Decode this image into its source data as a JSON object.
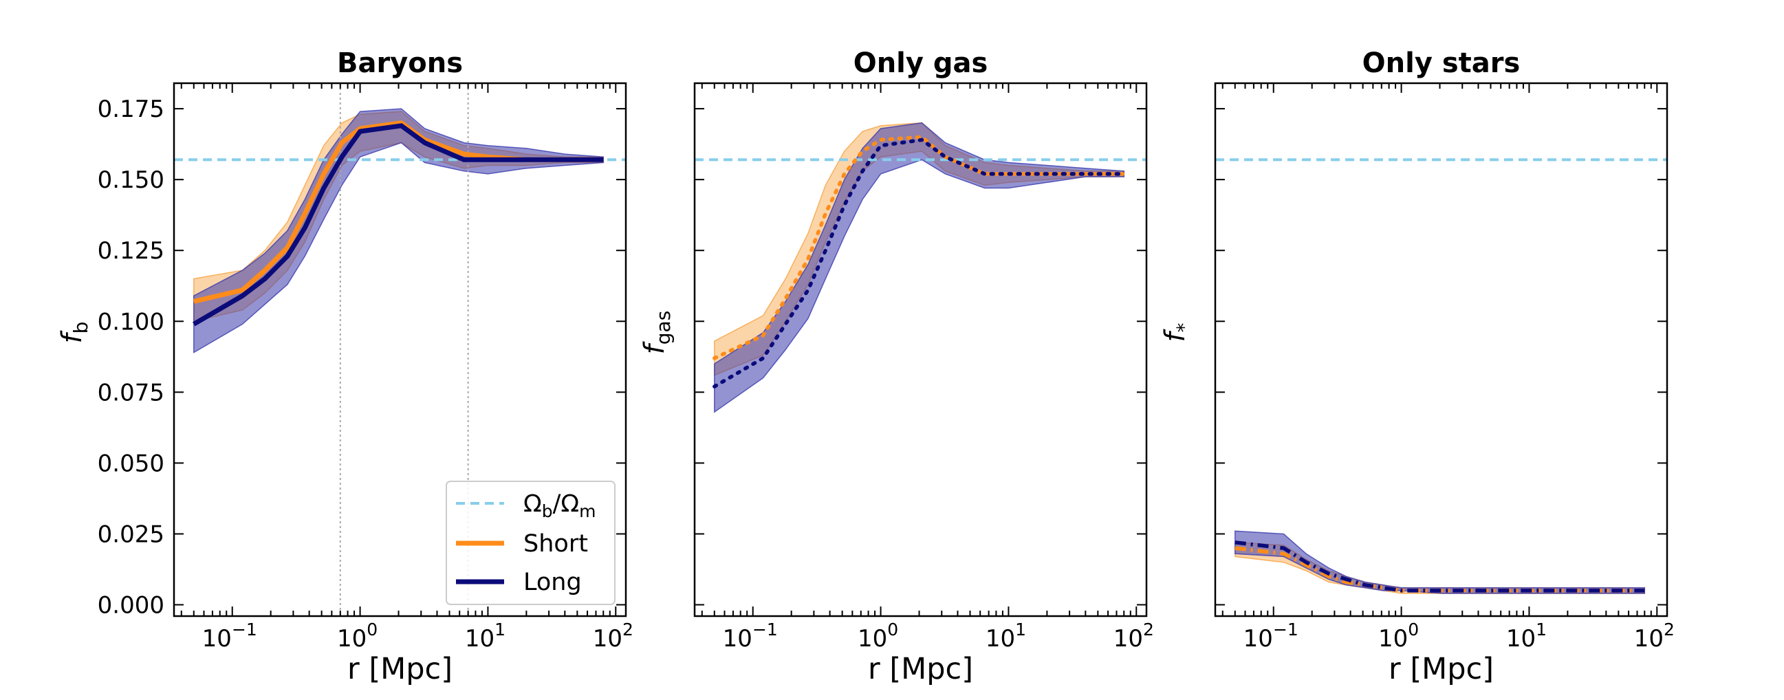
{
  "chart_data": [
    {
      "type": "line",
      "title": "Baryons",
      "xlabel": "r [Mpc]",
      "ylabel": "f",
      "ylabel_sub": "b",
      "xscale": "log",
      "xlim": [
        0.035,
        120
      ],
      "ylim": [
        -0.004,
        0.184
      ],
      "yticks": [
        {
          "v": 0.0,
          "label": "0.000"
        },
        {
          "v": 0.025,
          "label": "0.025"
        },
        {
          "v": 0.05,
          "label": "0.050"
        },
        {
          "v": 0.075,
          "label": "0.075"
        },
        {
          "v": 0.1,
          "label": "0.100"
        },
        {
          "v": 0.125,
          "label": "0.125"
        },
        {
          "v": 0.15,
          "label": "0.150"
        },
        {
          "v": 0.175,
          "label": "0.175"
        }
      ],
      "show_ytick_labels": true,
      "hline": 0.157,
      "vlines": [
        0.7,
        7
      ],
      "legend": {
        "location": "lower-right",
        "entries": [
          {
            "key": "omega",
            "label_main": "Ω",
            "label_sub1": "b",
            "label_mid": "/Ω",
            "label_sub2": "m"
          },
          {
            "key": "short",
            "label": "Short"
          },
          {
            "key": "long",
            "label": "Long"
          }
        ]
      },
      "line_style": "solid",
      "x": [
        0.05,
        0.12,
        0.18,
        0.27,
        0.37,
        0.52,
        0.72,
        1.0,
        2.1,
        3.2,
        6.5,
        10,
        20,
        40,
        80
      ],
      "series": [
        {
          "name": "Short",
          "values": [
            0.107,
            0.111,
            0.118,
            0.126,
            0.138,
            0.152,
            0.163,
            0.168,
            0.17,
            0.164,
            0.159,
            0.158,
            0.157,
            0.157,
            0.157
          ],
          "lower": [
            0.1,
            0.104,
            0.11,
            0.118,
            0.128,
            0.143,
            0.155,
            0.16,
            0.163,
            0.158,
            0.154,
            0.155,
            0.155,
            0.156,
            0.156
          ],
          "upper": [
            0.115,
            0.118,
            0.125,
            0.135,
            0.148,
            0.162,
            0.17,
            0.173,
            0.174,
            0.167,
            0.162,
            0.161,
            0.159,
            0.158,
            0.158
          ]
        },
        {
          "name": "Long",
          "values": [
            0.099,
            0.109,
            0.115,
            0.123,
            0.133,
            0.147,
            0.158,
            0.167,
            0.169,
            0.163,
            0.157,
            0.157,
            0.157,
            0.157,
            0.157
          ],
          "lower": [
            0.089,
            0.099,
            0.106,
            0.113,
            0.123,
            0.136,
            0.148,
            0.158,
            0.163,
            0.156,
            0.153,
            0.152,
            0.154,
            0.155,
            0.156
          ],
          "upper": [
            0.109,
            0.118,
            0.124,
            0.132,
            0.143,
            0.157,
            0.166,
            0.174,
            0.175,
            0.168,
            0.163,
            0.162,
            0.161,
            0.159,
            0.158
          ]
        }
      ]
    },
    {
      "type": "line",
      "title": "Only gas",
      "xlabel": "r [Mpc]",
      "ylabel": "f",
      "ylabel_sub": "gas",
      "xscale": "log",
      "xlim": [
        0.035,
        120
      ],
      "ylim": [
        -0.004,
        0.184
      ],
      "yticks": [
        {
          "v": 0.0
        },
        {
          "v": 0.025
        },
        {
          "v": 0.05
        },
        {
          "v": 0.075
        },
        {
          "v": 0.1
        },
        {
          "v": 0.125
        },
        {
          "v": 0.15
        },
        {
          "v": 0.175
        }
      ],
      "show_ytick_labels": false,
      "hline": 0.157,
      "line_style": "dotted",
      "x": [
        0.05,
        0.12,
        0.18,
        0.27,
        0.37,
        0.52,
        0.72,
        1.0,
        2.1,
        3.2,
        6.5,
        10,
        20,
        40,
        80
      ],
      "series": [
        {
          "name": "Short",
          "values": [
            0.087,
            0.095,
            0.108,
            0.122,
            0.138,
            0.152,
            0.16,
            0.164,
            0.165,
            0.158,
            0.152,
            0.152,
            0.152,
            0.152,
            0.152
          ],
          "lower": [
            0.081,
            0.088,
            0.1,
            0.113,
            0.128,
            0.142,
            0.153,
            0.158,
            0.16,
            0.153,
            0.148,
            0.149,
            0.15,
            0.151,
            0.151
          ],
          "upper": [
            0.093,
            0.102,
            0.115,
            0.131,
            0.148,
            0.16,
            0.167,
            0.169,
            0.17,
            0.162,
            0.156,
            0.155,
            0.154,
            0.153,
            0.153
          ]
        },
        {
          "name": "Long",
          "values": [
            0.077,
            0.087,
            0.099,
            0.111,
            0.125,
            0.141,
            0.153,
            0.162,
            0.164,
            0.158,
            0.152,
            0.152,
            0.152,
            0.152,
            0.152
          ],
          "lower": [
            0.068,
            0.08,
            0.09,
            0.101,
            0.115,
            0.13,
            0.143,
            0.152,
            0.157,
            0.152,
            0.147,
            0.147,
            0.149,
            0.151,
            0.151
          ],
          "upper": [
            0.085,
            0.096,
            0.107,
            0.12,
            0.134,
            0.15,
            0.161,
            0.168,
            0.17,
            0.163,
            0.157,
            0.156,
            0.155,
            0.154,
            0.153
          ]
        }
      ]
    },
    {
      "type": "line",
      "title": "Only stars",
      "xlabel": "r [Mpc]",
      "ylabel": "f",
      "ylabel_sub": "*",
      "xscale": "log",
      "xlim": [
        0.035,
        120
      ],
      "ylim": [
        -0.004,
        0.184
      ],
      "yticks": [
        {
          "v": 0.0
        },
        {
          "v": 0.025
        },
        {
          "v": 0.05
        },
        {
          "v": 0.075
        },
        {
          "v": 0.1
        },
        {
          "v": 0.125
        },
        {
          "v": 0.15
        },
        {
          "v": 0.175
        }
      ],
      "show_ytick_labels": false,
      "hline": 0.157,
      "line_style": "dashdot",
      "x": [
        0.05,
        0.12,
        0.18,
        0.27,
        0.37,
        0.52,
        0.72,
        1.0,
        2.1,
        3.2,
        6.5,
        10,
        20,
        40,
        80
      ],
      "series": [
        {
          "name": "Short",
          "values": [
            0.02,
            0.018,
            0.014,
            0.01,
            0.008,
            0.007,
            0.006,
            0.005,
            0.005,
            0.005,
            0.005,
            0.005,
            0.005,
            0.005,
            0.005
          ],
          "lower": [
            0.017,
            0.015,
            0.012,
            0.008,
            0.007,
            0.006,
            0.005,
            0.004,
            0.004,
            0.004,
            0.004,
            0.004,
            0.004,
            0.004,
            0.004
          ],
          "upper": [
            0.022,
            0.021,
            0.016,
            0.012,
            0.01,
            0.008,
            0.007,
            0.006,
            0.006,
            0.006,
            0.006,
            0.006,
            0.006,
            0.006,
            0.006
          ]
        },
        {
          "name": "Long",
          "values": [
            0.022,
            0.02,
            0.015,
            0.011,
            0.009,
            0.007,
            0.006,
            0.005,
            0.005,
            0.005,
            0.005,
            0.005,
            0.005,
            0.005,
            0.005
          ],
          "lower": [
            0.018,
            0.017,
            0.013,
            0.009,
            0.007,
            0.006,
            0.005,
            0.005,
            0.004,
            0.004,
            0.004,
            0.004,
            0.004,
            0.004,
            0.004
          ],
          "upper": [
            0.026,
            0.025,
            0.018,
            0.013,
            0.01,
            0.008,
            0.007,
            0.006,
            0.006,
            0.006,
            0.006,
            0.006,
            0.006,
            0.006,
            0.006
          ]
        }
      ]
    }
  ],
  "colors": {
    "short_line": "#ff8c1a",
    "short_fill": "#f7a13e",
    "long_line": "#0b0b7a",
    "long_fill": "#3a3aad",
    "omega_line": "#87ceeb",
    "vline": "#a8a8a8"
  }
}
